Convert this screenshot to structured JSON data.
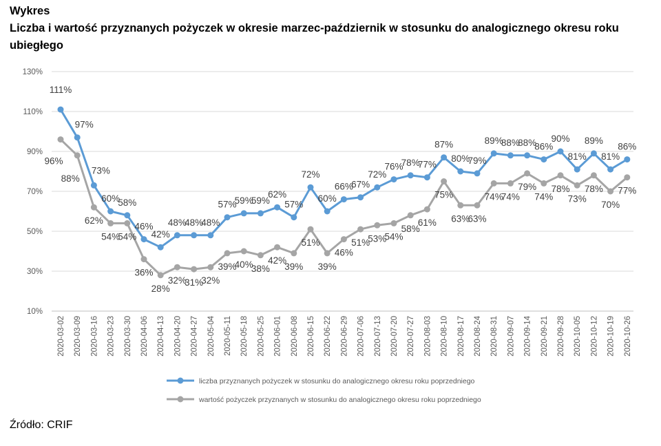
{
  "header": {
    "label": "Wykres",
    "title": "Liczba i wartość przyznanych pożyczek w okresie marzec-październik w stosunku do analogicznego okresu roku ubiegłego"
  },
  "source": "Źródło: CRIF",
  "chart_data": {
    "type": "line",
    "title": "Liczba i wartość przyznanych pożyczek w okresie marzec-październik w stosunku do analogicznego okresu roku ubiegłego",
    "xlabel": "",
    "ylabel": "",
    "ylim": [
      10,
      130
    ],
    "yticks": [
      10,
      30,
      50,
      70,
      90,
      110,
      130
    ],
    "ytick_labels": [
      "10%",
      "30%",
      "50%",
      "70%",
      "90%",
      "110%",
      "130%"
    ],
    "grid": true,
    "legend_position": "bottom",
    "categories": [
      "2020-03-02",
      "2020-03-09",
      "2020-03-16",
      "2020-03-23",
      "2020-03-30",
      "2020-04-06",
      "2020-04-13",
      "2020-04-20",
      "2020-04-27",
      "2020-05-04",
      "2020-05-11",
      "2020-05-18",
      "2020-05-25",
      "2020-06-01",
      "2020-06-08",
      "2020-06-15",
      "2020-06-22",
      "2020-06-29",
      "2020-07-06",
      "2020-07-13",
      "2020-07-20",
      "2020-07-27",
      "2020-08-03",
      "2020-08-10",
      "2020-08-17",
      "2020-08-24",
      "2020-08-31",
      "2020-09-07",
      "2020-09-14",
      "2020-09-21",
      "2020-09-28",
      "2020-10-05",
      "2020-10-12",
      "2020-10-19",
      "2020-10-26"
    ],
    "series": [
      {
        "name": "liczba przyznanych pożyczek w stosunku do analogicznego okresu roku poprzedniego",
        "color": "#5b9bd5",
        "values": [
          111,
          97,
          73,
          60,
          58,
          46,
          42,
          48,
          48,
          48,
          57,
          59,
          59,
          62,
          57,
          72,
          60,
          66,
          67,
          72,
          76,
          78,
          77,
          87,
          80,
          79,
          89,
          88,
          88,
          86,
          90,
          81,
          89,
          81,
          86
        ],
        "labels": [
          "111%",
          "97%",
          "73%",
          "60%",
          "58%",
          "46%",
          "42%",
          "48%",
          "48%",
          "48%",
          "57%",
          "59%",
          "59%",
          "62%",
          "57%",
          "72%",
          "60%",
          "66%",
          "67%",
          "72%",
          "76%",
          "78%",
          "77%",
          "87%",
          "80%",
          "79%",
          "89%",
          "88%",
          "88%",
          "86%",
          "90%",
          "81%",
          "89%",
          "81%",
          "86%"
        ]
      },
      {
        "name": "wartość pożyczek przyznanych w stosunku do analogicznego okresu roku poprzedniego",
        "color": "#a5a5a5",
        "values": [
          96,
          88,
          62,
          54,
          54,
          36,
          28,
          32,
          31,
          32,
          39,
          40,
          38,
          42,
          39,
          51,
          39,
          46,
          51,
          53,
          54,
          58,
          61,
          75,
          63,
          63,
          74,
          74,
          79,
          74,
          78,
          73,
          78,
          70,
          77
        ],
        "labels": [
          "96%",
          "88%",
          "62%",
          "54%",
          "54%",
          "36%",
          "28%",
          "32%",
          "31%",
          "32%",
          "39%",
          "40%",
          "38%",
          "42%",
          "39%",
          "51%",
          "39%",
          "46%",
          "51%",
          "53%",
          "54%",
          "58%",
          "61%",
          "75%",
          "63%",
          "63%",
          "74%",
          "74%",
          "79%",
          "74%",
          "78%",
          "73%",
          "78%",
          "70%",
          "77%"
        ]
      }
    ]
  }
}
